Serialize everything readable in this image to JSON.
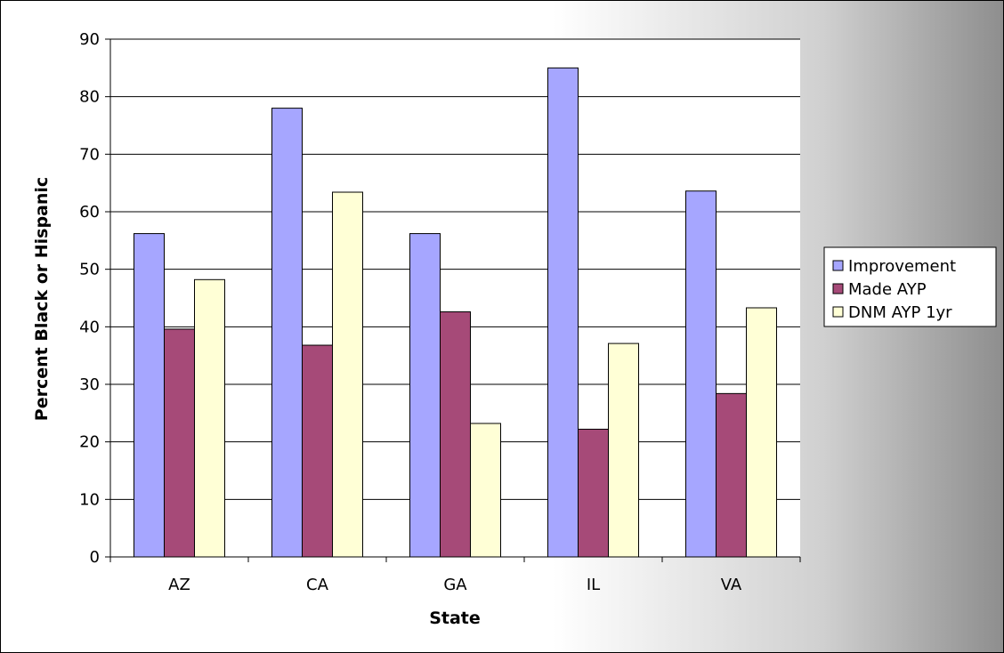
{
  "chart_data": {
    "type": "bar",
    "title": "",
    "xlabel": "State",
    "ylabel": "Percent Black or Hispanic",
    "ylim": [
      0,
      90
    ],
    "yticks": [
      0,
      10,
      20,
      30,
      40,
      50,
      60,
      70,
      80,
      90
    ],
    "categories": [
      "AZ",
      "CA",
      "GA",
      "IL",
      "VA"
    ],
    "series": [
      {
        "name": "Improvement",
        "color": "#A6A6FF",
        "values": [
          56.2,
          78.0,
          56.2,
          85.0,
          63.6
        ]
      },
      {
        "name": "Made AYP",
        "color": "#A64A78",
        "values": [
          39.6,
          36.8,
          42.6,
          22.2,
          28.4
        ]
      },
      {
        "name": "DNM AYP 1yr",
        "color": "#FFFFD6",
        "values": [
          48.2,
          63.4,
          23.2,
          37.1,
          43.3
        ]
      }
    ],
    "grid": "horizontal",
    "legend": "right"
  }
}
